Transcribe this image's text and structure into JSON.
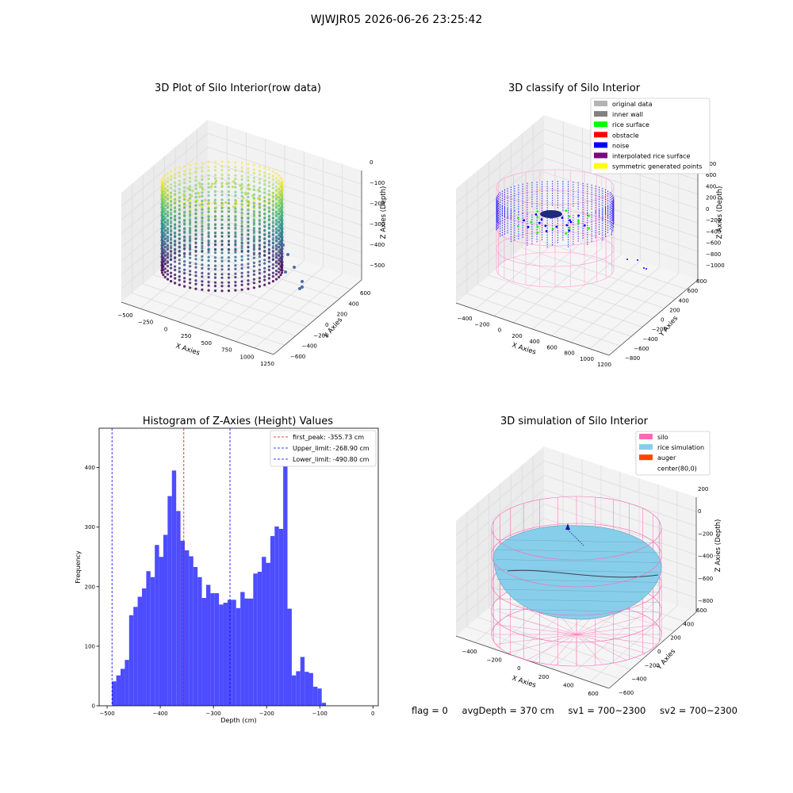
{
  "figure": {
    "title": "WJWJR05 2026-06-26 23:25:42"
  },
  "footer": {
    "flag": "flag = 0",
    "avg_depth": "avgDepth = 370 cm",
    "sv1": "sv1 = 700~2300",
    "sv2": "sv2 = 700~2300"
  },
  "chart_data": [
    {
      "type": "scatter",
      "title": "3D Plot of Silo Interior(row data)",
      "xlabel": "X Axies",
      "ylabel": "Y Axies",
      "zlabel": "Z Axies (Depth)",
      "x_ticks": [
        "−500",
        "−250",
        "0",
        "250",
        "500",
        "750",
        "1000",
        "1250"
      ],
      "y_ticks": [
        "−600",
        "−400",
        "−200",
        "0",
        "200",
        "400",
        "600"
      ],
      "z_ticks": [
        "−500",
        "−400",
        "−300",
        "−200",
        "−100",
        "0"
      ],
      "xlim": [
        -500,
        1250
      ],
      "ylim": [
        -600,
        600
      ],
      "zlim": [
        -500,
        0
      ],
      "colormap": "viridis"
    },
    {
      "type": "scatter",
      "title": "3D classify of Silo Interior",
      "xlabel": "X Axies",
      "ylabel": "Y Axies",
      "zlabel": "Z Axies (Depth)",
      "x_ticks": [
        "−400",
        "−200",
        "0",
        "200",
        "400",
        "600",
        "800",
        "1000",
        "1200"
      ],
      "y_ticks": [
        "−800",
        "−600",
        "−400",
        "−200",
        "0",
        "200",
        "400",
        "600",
        "800"
      ],
      "z_ticks": [
        "−1000",
        "−800",
        "−600",
        "−400",
        "−200",
        "0",
        "200",
        "400",
        "600",
        "800"
      ],
      "legend_position": "top-right",
      "legend": [
        {
          "label": "original data",
          "color": "#b3b3b3"
        },
        {
          "label": "inner wall",
          "color": "#808080"
        },
        {
          "label": "rice surface",
          "color": "#00ff00"
        },
        {
          "label": "obstacle",
          "color": "#ff0000"
        },
        {
          "label": "noise",
          "color": "#0000ff"
        },
        {
          "label": "interpolated rice surface",
          "color": "#800080"
        },
        {
          "label": "symmetric generated points",
          "color": "#ffff00"
        }
      ]
    },
    {
      "type": "bar",
      "title": "Histogram of Z-Axies (Height) Values",
      "xlabel": "Depth (cm)",
      "ylabel": "Frequency",
      "xlim": [
        -515,
        10
      ],
      "ylim": [
        0,
        466
      ],
      "x_ticks": [
        -500,
        -400,
        -300,
        -200,
        -100,
        0
      ],
      "y_ticks": [
        0,
        100,
        200,
        300,
        400
      ],
      "bar_color": "#4d4dff",
      "bin_start": -490.8,
      "bin_width": 8.05,
      "values": [
        41,
        51,
        62,
        77,
        152,
        166,
        183,
        197,
        226,
        216,
        270,
        250,
        287,
        352,
        395,
        327,
        277,
        261,
        251,
        233,
        216,
        181,
        203,
        189,
        189,
        170,
        173,
        178,
        178,
        164,
        191,
        180,
        180,
        222,
        225,
        250,
        240,
        285,
        301,
        297,
        444,
        163,
        51,
        58,
        82,
        57,
        55,
        32,
        29,
        5
      ],
      "lines": [
        {
          "label": "first_peak: -355.73 cm",
          "value": -355.73,
          "color": "#ff0000"
        },
        {
          "label": "Upper_limit: -268.90 cm",
          "value": -268.9,
          "color": "#0000ff"
        },
        {
          "label": "Lower_limit: -490.80 cm",
          "value": -490.8,
          "color": "#0000ff"
        }
      ],
      "legend_position": "top-right"
    },
    {
      "type": "scatter",
      "title": "3D simulation of Silo Interior",
      "xlabel": "X Axies",
      "ylabel": "Y Axies",
      "zlabel": "Z Axies (Depth)",
      "x_ticks": [
        "−400",
        "−200",
        "0",
        "200",
        "400",
        "600"
      ],
      "y_ticks": [
        "−600",
        "−400",
        "−200",
        "0",
        "200",
        "400",
        "600"
      ],
      "z_ticks": [
        "−800",
        "−600",
        "−400",
        "−200",
        "0",
        "200"
      ],
      "legend_position": "top-right",
      "legend": [
        {
          "label": "silo",
          "color": "#ff69b4"
        },
        {
          "label": "rice simulation",
          "color": "#87ceeb"
        },
        {
          "label": "auger",
          "color": "#ff4500"
        },
        {
          "label": "center(80,0)",
          "color": ""
        }
      ]
    }
  ]
}
